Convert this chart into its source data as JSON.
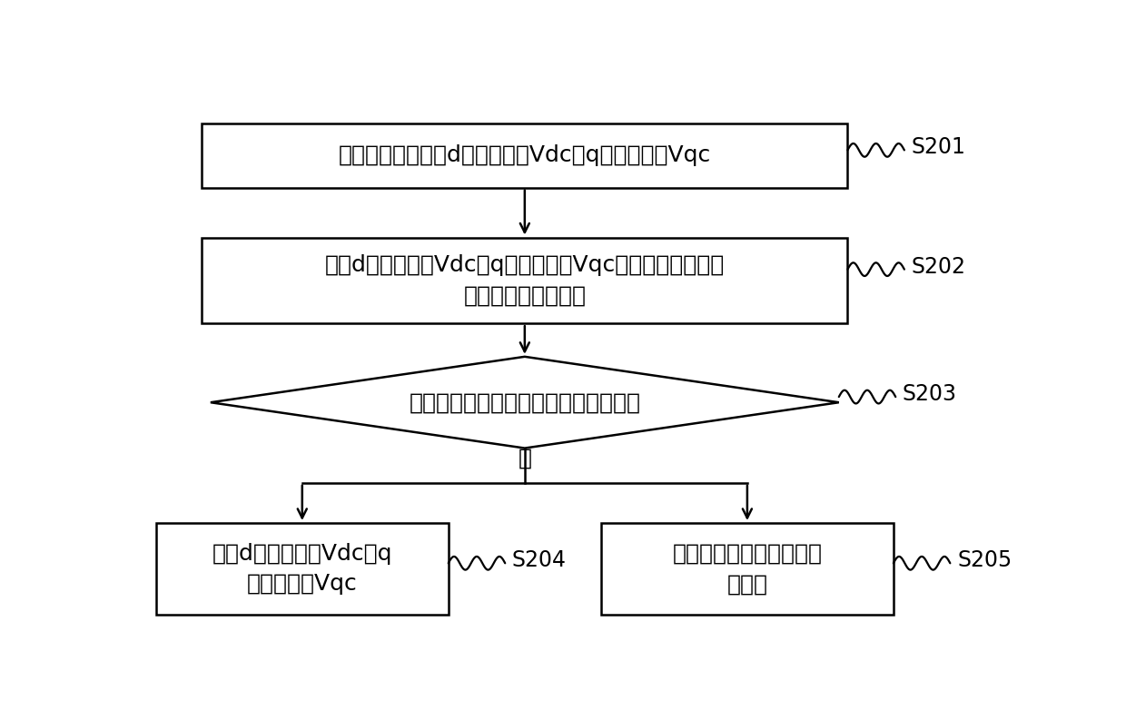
{
  "background_color": "#ffffff",
  "s201_text": "获取电流环输出的d轴电压指令Vdc和q轴电压指令Vqc",
  "s202_text": "根据d轴电压指令Vdc和q轴电压指令Vqc以及电机的电源电\n压，确定电压饱和率",
  "s203_text": "判断电压饱和率是否大于预设饱和阈值",
  "s204_text": "修正d轴电压指令Vdc和q\n轴电压指令Vqc",
  "s205_text": "修正输出至电机的三相电\n压指令",
  "yes_label": "是",
  "s201_label": "S201",
  "s202_label": "S202",
  "s203_label": "S203",
  "s204_label": "S204",
  "s205_label": "S205",
  "box_edge_color": "#000000",
  "box_face_color": "#ffffff",
  "text_color": "#000000",
  "arrow_color": "#000000",
  "line_width": 1.8,
  "fontsize": 18,
  "label_fontsize": 17
}
